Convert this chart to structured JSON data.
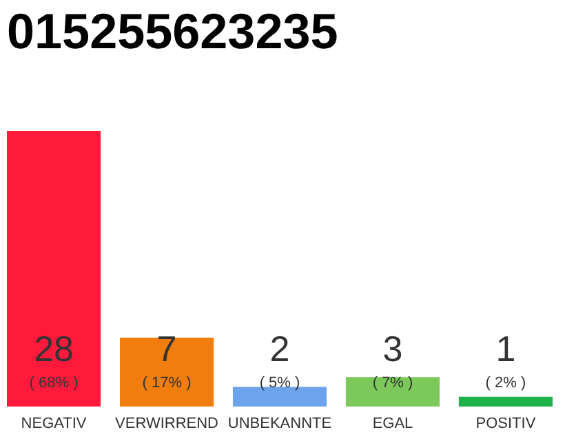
{
  "chart_data": {
    "type": "bar",
    "title": "015255623235",
    "categories": [
      "NEGATIV",
      "VERWIRREND",
      "UNBEKANNTE",
      "EGAL",
      "POSITIV"
    ],
    "values": [
      28,
      7,
      2,
      3,
      1
    ],
    "colors": [
      "#ff1a3c",
      "#f07d0d",
      "#6da3eb",
      "#7cc85a",
      "#1db34a"
    ],
    "data_labels": true,
    "annotations": [
      "( 68% )",
      "( 17% )",
      "( 5% )",
      "( 7% )",
      "( 2% )"
    ]
  }
}
